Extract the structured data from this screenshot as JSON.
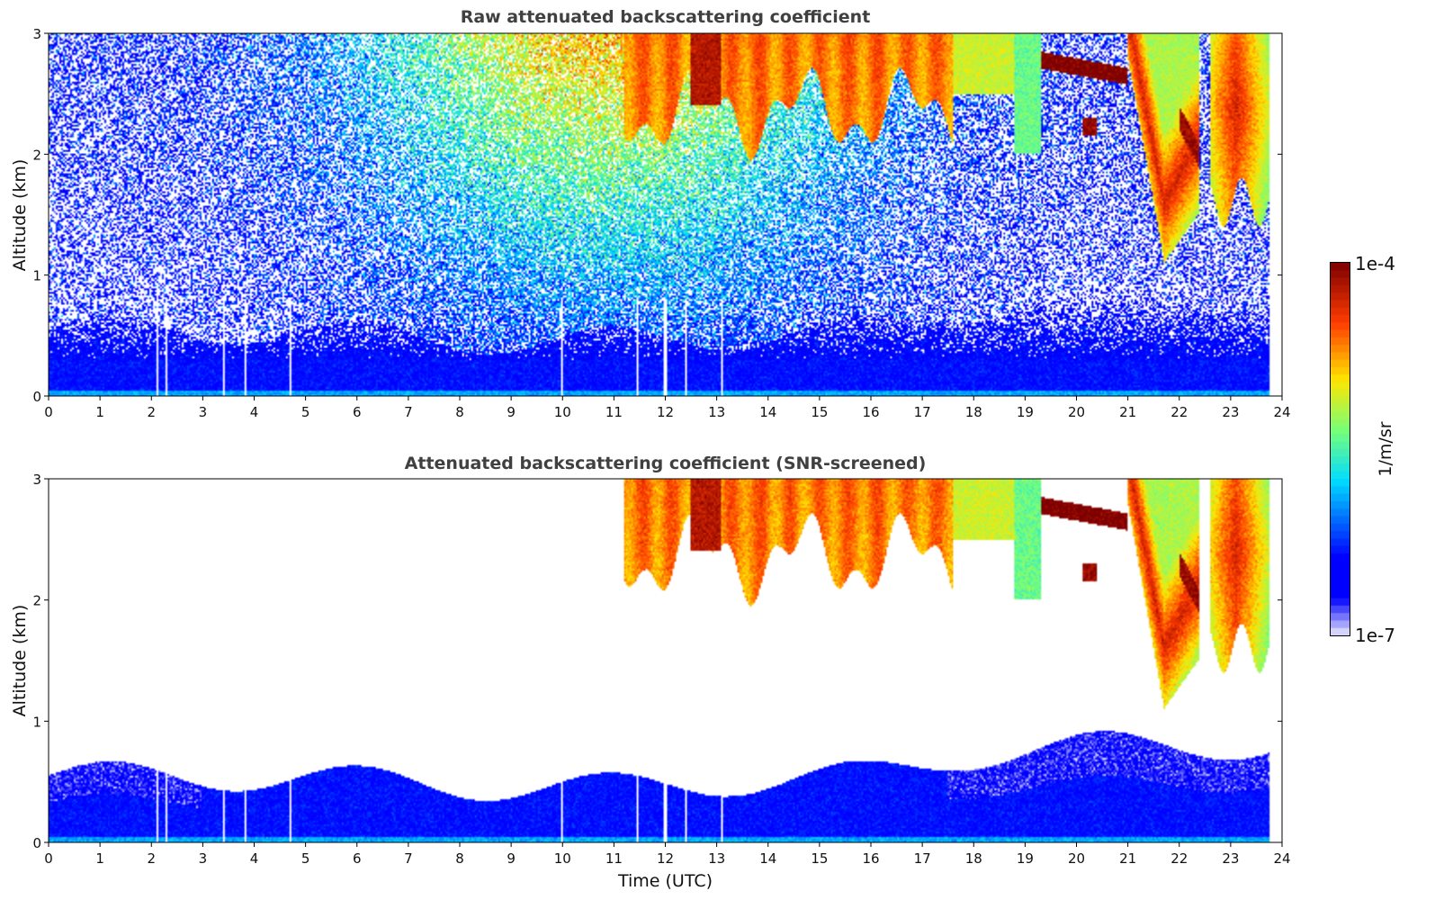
{
  "chart_data": [
    {
      "type": "heatmap",
      "title": "Raw attenuated backscattering coefficient",
      "xlabel": "",
      "ylabel": "Altitude (km)",
      "xlim": [
        0,
        24
      ],
      "ylim": [
        0,
        3
      ],
      "xticks": [
        "0",
        "1",
        "2",
        "3",
        "4",
        "5",
        "6",
        "7",
        "8",
        "9",
        "10",
        "11",
        "12",
        "13",
        "14",
        "15",
        "16",
        "17",
        "18",
        "19",
        "20",
        "21",
        "22",
        "23",
        "24"
      ],
      "yticks": [
        "0",
        "1",
        "2",
        "3"
      ],
      "data_end_hour": 23.75,
      "data_gaps_hours": [
        2.13,
        2.3,
        3.42,
        3.83,
        4.72,
        10.0,
        11.45,
        12.0,
        12.4,
        13.1
      ],
      "screened": false
    },
    {
      "type": "heatmap",
      "title": "Attenuated backscattering coefficient (SNR-screened)",
      "xlabel": "Time (UTC)",
      "ylabel": "Altitude (km)",
      "xlim": [
        0,
        24
      ],
      "ylim": [
        0,
        3
      ],
      "xticks": [
        "0",
        "1",
        "2",
        "3",
        "4",
        "5",
        "6",
        "7",
        "8",
        "9",
        "10",
        "11",
        "12",
        "13",
        "14",
        "15",
        "16",
        "17",
        "18",
        "19",
        "20",
        "21",
        "22",
        "23",
        "24"
      ],
      "yticks": [
        "0",
        "1",
        "2",
        "3"
      ],
      "data_end_hour": 23.75,
      "data_gaps_hours": [
        2.13,
        2.3,
        3.42,
        3.83,
        4.72,
        10.0,
        11.45,
        12.0,
        12.4,
        13.1
      ],
      "screened": true
    }
  ],
  "colorbar": {
    "label": "1/m/sr",
    "max_label": "1e-4",
    "min_label": "1e-7",
    "range_log10": [
      -7,
      -4
    ],
    "colormap": "jet"
  }
}
